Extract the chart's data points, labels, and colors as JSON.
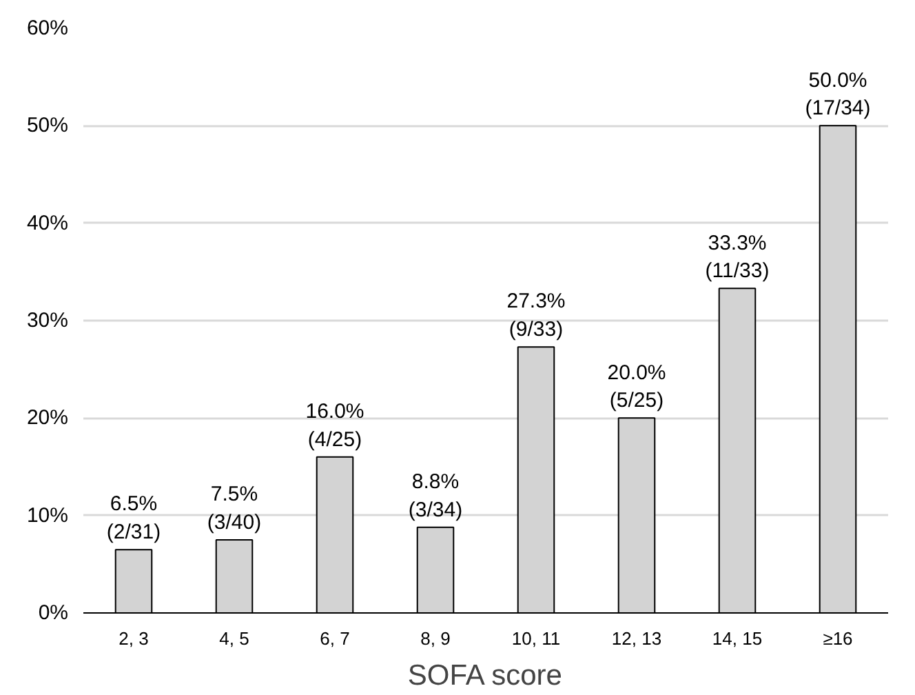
{
  "chart_data": {
    "type": "bar",
    "xlabel": "SOFA score",
    "categories": [
      "2, 3",
      "4, 5",
      "6, 7",
      "8, 9",
      "10, 11",
      "12, 13",
      "14, 15",
      "≥16"
    ],
    "values": [
      6.5,
      7.5,
      16.0,
      8.8,
      27.3,
      20.0,
      33.3,
      50.0
    ],
    "value_labels": [
      "6.5%\n(2/31)",
      "7.5%\n(3/40)",
      "16.0%\n(4/25)",
      "8.8%\n(3/34)",
      "27.3%\n(9/33)",
      "20.0%\n(5/25)",
      "33.3%\n(11/33)",
      "50.0%\n(17/34)"
    ],
    "color": "#d3d3d3",
    "ylim": [
      0,
      60
    ],
    "yticks": [
      {
        "value": 0,
        "label": "0%"
      },
      {
        "value": 10,
        "label": "10%"
      },
      {
        "value": 20,
        "label": "20%"
      },
      {
        "value": 30,
        "label": "30%"
      },
      {
        "value": 40,
        "label": "40%"
      },
      {
        "value": 50,
        "label": "50%"
      },
      {
        "value": 60,
        "label": "60%"
      }
    ],
    "grid": "y"
  }
}
